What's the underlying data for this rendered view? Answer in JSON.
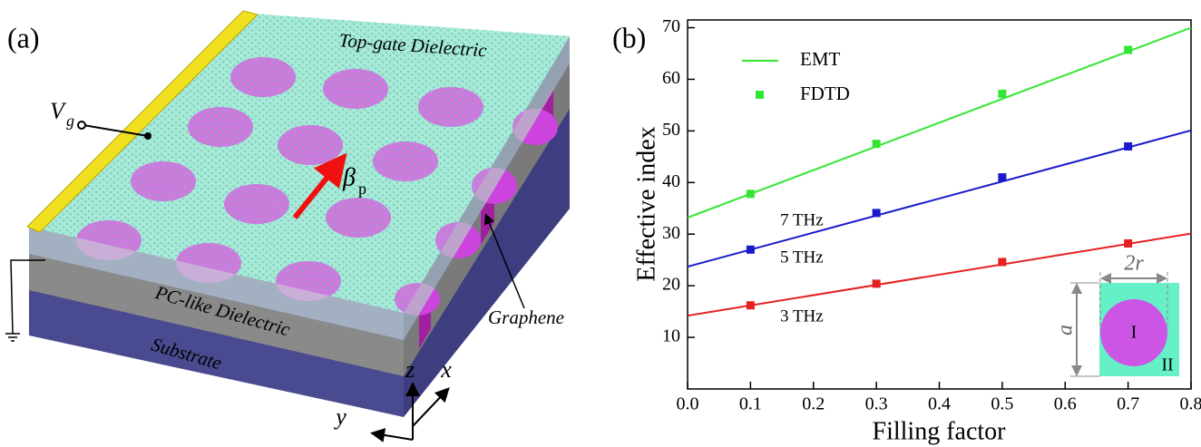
{
  "panel_a": {
    "label": "(a)",
    "top_layer": "Top-gate Dielectric",
    "gate_symbol": "V",
    "gate_subscript": "g",
    "wave_symbol": "β",
    "wave_subscript": "p",
    "middle_layer": "PC-like Dielectric",
    "bottom_layer": "Substrate",
    "sheet": "Graphene",
    "axis_z": "z",
    "axis_x": "x",
    "axis_y": "y"
  },
  "chart_data": {
    "type": "line",
    "panel_label": "(b)",
    "x_label": "Filling factor",
    "y_label": "Effective index",
    "xlim": [
      0,
      0.8
    ],
    "xticks": [
      {
        "value": 0,
        "label": "0.0"
      },
      0.1,
      0.2,
      0.3,
      0.4,
      0.5,
      0.6,
      0.7,
      0.8
    ],
    "ylim": [
      0,
      71.5
    ],
    "yticks": [
      10,
      20,
      30,
      40,
      50,
      60,
      70
    ],
    "legend": {
      "entries": [
        "EMT",
        "FDTD"
      ],
      "color": "#33e633"
    },
    "series": [
      {
        "name": "7 THz",
        "color": "#33e633",
        "fit_x": [
          0,
          0.8
        ],
        "fit_values": [
          33.2,
          70
        ],
        "x": [
          0.1,
          0.3,
          0.5,
          0.7
        ],
        "values": [
          37.8,
          47.5,
          57.2,
          65.7
        ]
      },
      {
        "name": "5 THz",
        "color": "#1a1acc",
        "fit_x": [
          0,
          0.8
        ],
        "fit_values": [
          23.7,
          50.1
        ],
        "x": [
          0.1,
          0.3,
          0.5,
          0.7
        ],
        "values": [
          27,
          34.1,
          41,
          47
        ]
      },
      {
        "name": "3 THz",
        "color": "#e62020",
        "fit_x": [
          0,
          0.8
        ],
        "fit_values": [
          14.2,
          30.1
        ],
        "x": [
          0.1,
          0.3,
          0.5,
          0.7
        ],
        "values": [
          16.2,
          20.4,
          24.6,
          28.2
        ]
      }
    ],
    "inset": {
      "width_label": "2r",
      "height_label": "a",
      "region_1": "I",
      "region_2": "II"
    }
  }
}
